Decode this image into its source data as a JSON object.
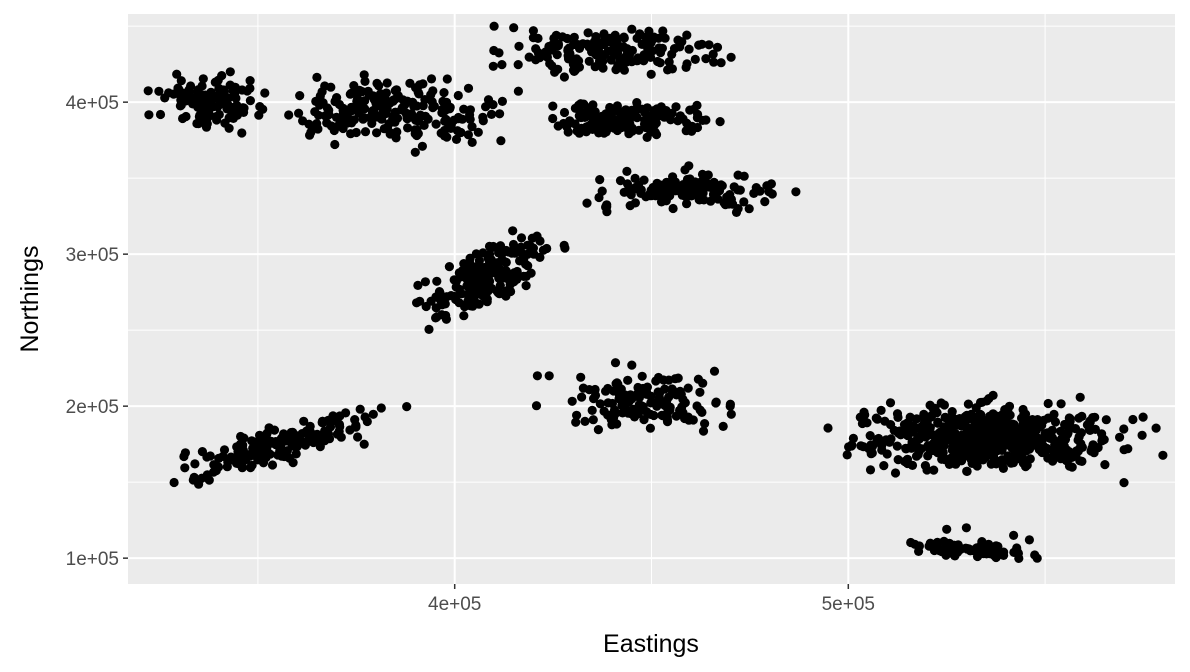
{
  "chart_data": {
    "type": "scatter",
    "xlabel": "Eastings",
    "ylabel": "Northings",
    "xlim": [
      317000,
      583000
    ],
    "ylim": [
      83000,
      458000
    ],
    "x_major_ticks": [
      400000,
      500000
    ],
    "x_tick_labels": [
      "4e+05",
      "5e+05"
    ],
    "x_minor_ticks": [
      350000,
      450000,
      550000
    ],
    "y_major_ticks": [
      100000,
      200000,
      300000,
      400000
    ],
    "y_tick_labels": [
      "1e+05",
      "2e+05",
      "3e+05",
      "4e+05"
    ],
    "y_minor_ticks": [
      150000,
      250000,
      350000,
      450000
    ],
    "grid": true,
    "colors": {
      "panel": "#ebebeb",
      "grid": "#ffffff",
      "point": "#000000"
    },
    "clusters": [
      {
        "cx": 338000,
        "cy": 400000,
        "sx": 6000,
        "sy": 8000,
        "n": 110,
        "slope": 0.0,
        "extra": [
          [
            330000,
            408000
          ],
          [
            343000,
            420000
          ],
          [
            346000,
            408000
          ]
        ]
      },
      {
        "cx": 384000,
        "cy": 393000,
        "sx": 13000,
        "sy": 9000,
        "n": 220,
        "slope": 0.0,
        "extra": [
          [
            370000,
            403000
          ],
          [
            377000,
            418000
          ],
          [
            390000,
            367000
          ],
          [
            398000,
            377000
          ],
          [
            404000,
            395000
          ]
        ]
      },
      {
        "cx": 440000,
        "cy": 433000,
        "sx": 12000,
        "sy": 7000,
        "n": 170,
        "slope": 0.0,
        "extra": [
          [
            410000,
            450000
          ],
          [
            415000,
            449000
          ],
          [
            420000,
            447000
          ],
          [
            445000,
            448000
          ],
          [
            447000,
            445000
          ]
        ]
      },
      {
        "cx": 445000,
        "cy": 388000,
        "sx": 10000,
        "sy": 6000,
        "n": 150,
        "slope": 0.0,
        "extra": [
          [
            432000,
            399000
          ],
          [
            463000,
            388000
          ]
        ]
      },
      {
        "cx": 458000,
        "cy": 342000,
        "sx": 11000,
        "sy": 5500,
        "n": 150,
        "slope": 0.0,
        "extra": [
          [
            472000,
            352000
          ],
          [
            476000,
            340000
          ],
          [
            472000,
            330000
          ],
          [
            468000,
            345000
          ]
        ]
      },
      {
        "cx": 408000,
        "cy": 285000,
        "sx": 7000,
        "sy": 9000,
        "n": 200,
        "slope": 1.2,
        "extra": [
          [
            420000,
            304000
          ],
          [
            428000,
            304000
          ],
          [
            404000,
            266000
          ],
          [
            398000,
            272000
          ]
        ]
      },
      {
        "cx": 448000,
        "cy": 203000,
        "sx": 10000,
        "sy": 9000,
        "n": 140,
        "slope": 0.0,
        "extra": [
          [
            421000,
            220000
          ],
          [
            424000,
            220000
          ],
          [
            432000,
            219000
          ],
          [
            445000,
            227000
          ],
          [
            466000,
            223000
          ],
          [
            470000,
            200000
          ]
        ]
      },
      {
        "cx": 355000,
        "cy": 175000,
        "sx": 12000,
        "sy": 6000,
        "n": 170,
        "slope": 0.75,
        "extra": [
          [
            334000,
            162000
          ],
          [
            340000,
            160000
          ],
          [
            376000,
            198000
          ],
          [
            377000,
            175000
          ]
        ]
      },
      {
        "cx": 535000,
        "cy": 180000,
        "sx": 15000,
        "sy": 10000,
        "n": 560,
        "slope": 0.0,
        "extra": [
          [
            504000,
            196000
          ],
          [
            512000,
            156000
          ],
          [
            520000,
            158000
          ],
          [
            570000,
            185000
          ],
          [
            571000,
            172000
          ],
          [
            565000,
            178000
          ]
        ]
      },
      {
        "cx": 530000,
        "cy": 106000,
        "sx": 7000,
        "sy": 2500,
        "n": 80,
        "slope": -0.2,
        "extra": [
          [
            525000,
            119000
          ],
          [
            530000,
            120000
          ],
          [
            542000,
            115000
          ],
          [
            546000,
            112000
          ],
          [
            548000,
            100000
          ]
        ]
      }
    ]
  }
}
